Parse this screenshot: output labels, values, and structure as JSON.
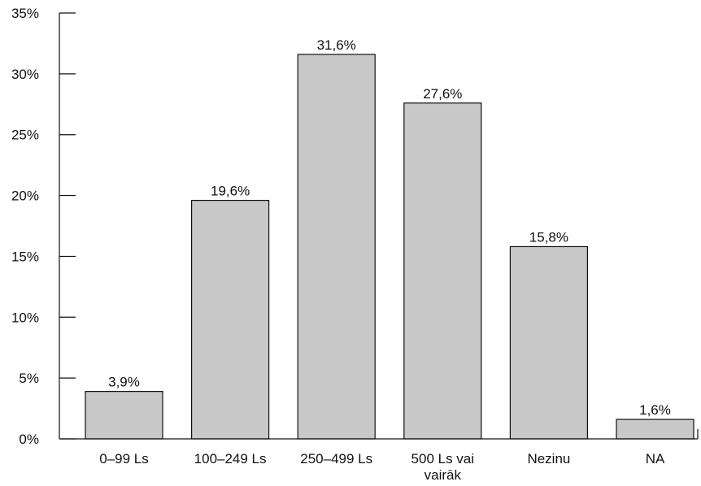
{
  "chart_data": {
    "type": "bar",
    "title": "",
    "xlabel": "",
    "ylabel": "",
    "categories": [
      [
        "0–99 Ls"
      ],
      [
        "100–249 Ls"
      ],
      [
        "250–499 Ls"
      ],
      [
        "500 Ls vai",
        "vairāk"
      ],
      [
        "Nezinu"
      ],
      [
        "NA"
      ]
    ],
    "values": [
      3.9,
      19.6,
      31.6,
      27.6,
      15.8,
      1.6
    ],
    "data_labels": [
      "3,9%",
      "19,6%",
      "31,6%",
      "27,6%",
      "15,8%",
      "1,6%"
    ],
    "ylim": [
      0,
      35
    ],
    "yticks": [
      0,
      5,
      10,
      15,
      20,
      25,
      30,
      35
    ],
    "ytick_labels": [
      "0%",
      "5%",
      "10%",
      "15%",
      "20%",
      "25%",
      "30%",
      "35%"
    ],
    "grid": false,
    "legend": "none",
    "colors": {
      "bar_fill": "#c8c8c8",
      "bar_stroke": "#111111",
      "axis": "#111111"
    }
  }
}
